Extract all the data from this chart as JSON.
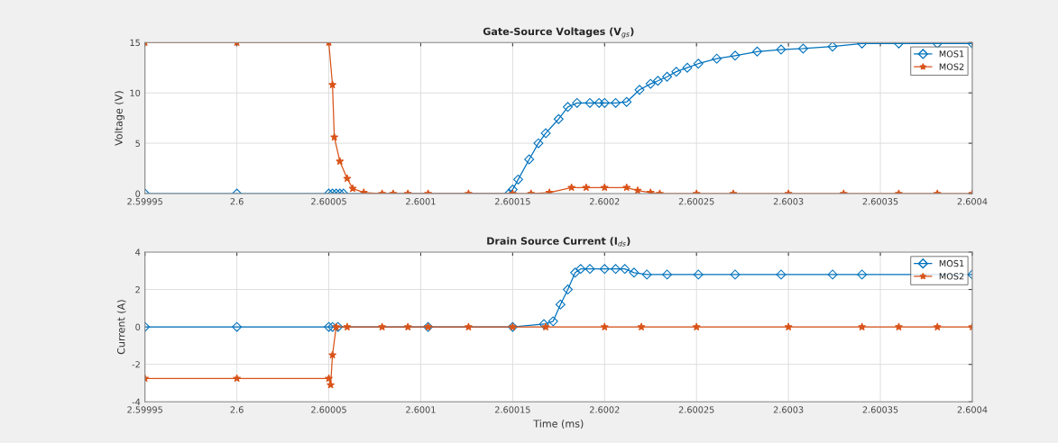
{
  "chart_data": [
    {
      "type": "line",
      "title": "Gate-Source Voltages (V$_{gs}$)",
      "ylabel": "Voltage (V)",
      "xlim": [
        2.59995,
        2.6004
      ],
      "xticks": [
        2.59995,
        2.6,
        2.60005,
        2.6001,
        2.60015,
        2.6002,
        2.60025,
        2.6003,
        2.60035,
        2.6004
      ],
      "ylim": [
        0,
        15
      ],
      "yticks": [
        0,
        5,
        10,
        15
      ],
      "grid": true,
      "legend": "top right",
      "series": [
        {
          "name": "MOS1",
          "color": "#0072bd",
          "marker": "diamond",
          "x": [
            2.59995,
            2.6,
            2.60005,
            2.600052,
            2.600054,
            2.600056,
            2.600058,
            2.600148,
            2.60015,
            2.600153,
            2.600159,
            2.600164,
            2.600168,
            2.600175,
            2.60018,
            2.600185,
            2.600192,
            2.600197,
            2.6002,
            2.600206,
            2.600212,
            2.600219,
            2.600225,
            2.600229,
            2.600234,
            2.600239,
            2.600245,
            2.600251,
            2.600261,
            2.600271,
            2.600283,
            2.600296,
            2.600308,
            2.600324,
            2.60034,
            2.60036,
            2.600381,
            2.6004
          ],
          "values": [
            0,
            0,
            0,
            0,
            0,
            0,
            0,
            0,
            0.4,
            1.4,
            3.4,
            5.0,
            6.0,
            7.4,
            8.6,
            9.0,
            9.0,
            9.0,
            9.0,
            9.0,
            9.1,
            10.3,
            10.9,
            11.2,
            11.6,
            12.1,
            12.5,
            12.9,
            13.4,
            13.7,
            14.1,
            14.3,
            14.4,
            14.6,
            14.9,
            14.9,
            14.9,
            14.9
          ]
        },
        {
          "name": "MOS2",
          "color": "#d95319",
          "marker": "star",
          "x": [
            2.59995,
            2.6,
            2.60005,
            2.600052,
            2.600053,
            2.600056,
            2.60006,
            2.600063,
            2.600069,
            2.600079,
            2.600085,
            2.600093,
            2.600104,
            2.600126,
            2.60015,
            2.60016,
            2.60017,
            2.600182,
            2.60019,
            2.6002,
            2.600212,
            2.600218,
            2.600225,
            2.60023,
            2.60025,
            2.60027,
            2.6003,
            2.60033,
            2.60036,
            2.600381,
            2.6004
          ],
          "values": [
            15,
            15,
            15,
            10.8,
            5.6,
            3.2,
            1.5,
            0.5,
            0.1,
            0,
            0,
            0,
            0,
            0,
            0,
            0,
            0.1,
            0.6,
            0.6,
            0.6,
            0.6,
            0.3,
            0.1,
            0,
            0,
            0,
            0,
            0,
            0,
            0,
            0
          ]
        }
      ]
    },
    {
      "type": "line",
      "title": "Drain Source Current (I$_{ds}$)",
      "xlabel": "Time (ms)",
      "ylabel": "Current (A)",
      "xlim": [
        2.59995,
        2.6004
      ],
      "xticks": [
        2.59995,
        2.6,
        2.60005,
        2.6001,
        2.60015,
        2.6002,
        2.60025,
        2.6003,
        2.60035,
        2.6004
      ],
      "ylim": [
        -4,
        4
      ],
      "yticks": [
        -4,
        -2,
        0,
        2,
        4
      ],
      "grid": true,
      "legend": "top right",
      "series": [
        {
          "name": "MOS1",
          "color": "#0072bd",
          "marker": "diamond",
          "x": [
            2.59995,
            2.6,
            2.60005,
            2.600052,
            2.600055,
            2.600104,
            2.60015,
            2.600167,
            2.600172,
            2.600176,
            2.60018,
            2.600184,
            2.600187,
            2.600192,
            2.6002,
            2.600206,
            2.600211,
            2.600216,
            2.600223,
            2.600234,
            2.600251,
            2.600271,
            2.600296,
            2.600324,
            2.60034,
            2.6004
          ],
          "values": [
            0,
            0,
            0,
            0,
            0,
            0,
            0,
            0.15,
            0.3,
            1.2,
            2.0,
            2.9,
            3.1,
            3.1,
            3.1,
            3.1,
            3.1,
            2.9,
            2.8,
            2.8,
            2.8,
            2.8,
            2.8,
            2.8,
            2.8,
            2.8
          ]
        },
        {
          "name": "MOS2",
          "color": "#d95319",
          "marker": "star",
          "x": [
            2.59995,
            2.6,
            2.60005,
            2.600051,
            2.600052,
            2.600054,
            2.60006,
            2.600079,
            2.600093,
            2.600104,
            2.600126,
            2.60015,
            2.600168,
            2.6002,
            2.60022,
            2.60025,
            2.6003,
            2.60034,
            2.60036,
            2.600381,
            2.6004
          ],
          "values": [
            -2.75,
            -2.75,
            -2.75,
            -3.1,
            -1.5,
            0,
            0,
            0,
            0,
            0,
            0,
            0,
            0,
            0,
            0,
            0,
            0,
            0,
            0,
            0,
            0
          ]
        }
      ]
    }
  ]
}
